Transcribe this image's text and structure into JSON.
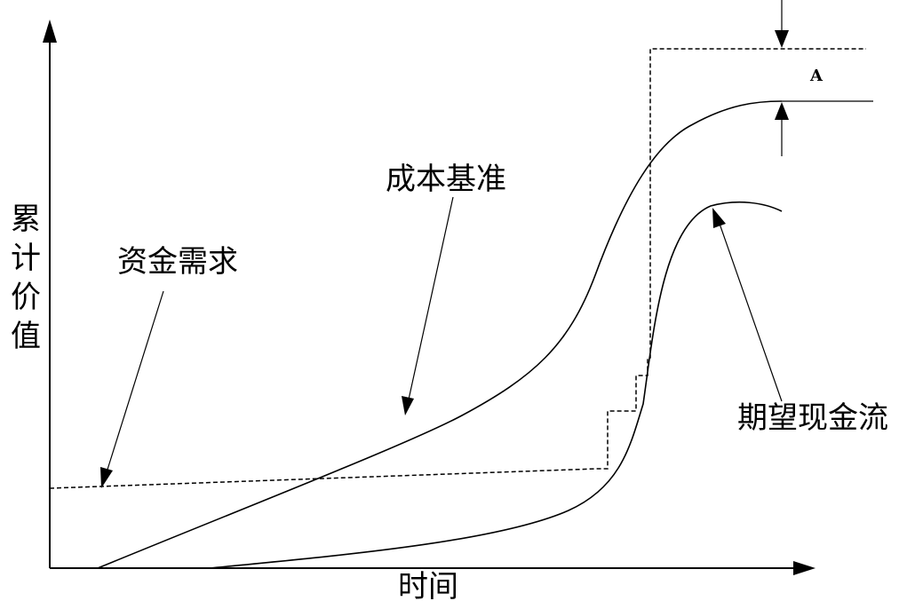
{
  "diagram": {
    "y_axis_label": [
      "累",
      "计",
      "价",
      "值"
    ],
    "x_axis_label": "时间",
    "labels": {
      "funding_requirement": "资金需求",
      "cost_baseline": "成本基准",
      "expected_cash_flow": "期望现金流",
      "management_reserve": "A"
    },
    "line_color": "#000000",
    "background_color": "#ffffff"
  }
}
